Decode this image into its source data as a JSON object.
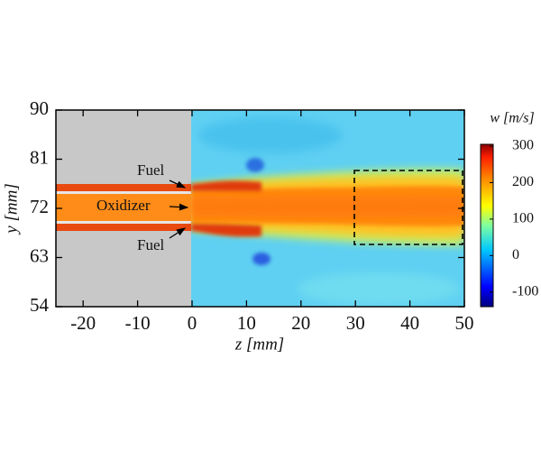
{
  "chart_data": {
    "type": "heatmap",
    "xlabel": "z [mm]",
    "ylabel": "y [mm]",
    "xlim": [
      -25,
      50
    ],
    "ylim": [
      54,
      90
    ],
    "xticks": [
      -20,
      -10,
      0,
      10,
      20,
      30,
      40,
      50
    ],
    "yticks": [
      54,
      63,
      72,
      81,
      90
    ],
    "colorbar": {
      "label": "w [m/s]",
      "lim": [
        -140,
        305
      ],
      "ticks": [
        -100,
        0,
        100,
        200,
        300
      ]
    },
    "annotations": [
      "Fuel",
      "Oxidizer",
      "Fuel"
    ]
  }
}
